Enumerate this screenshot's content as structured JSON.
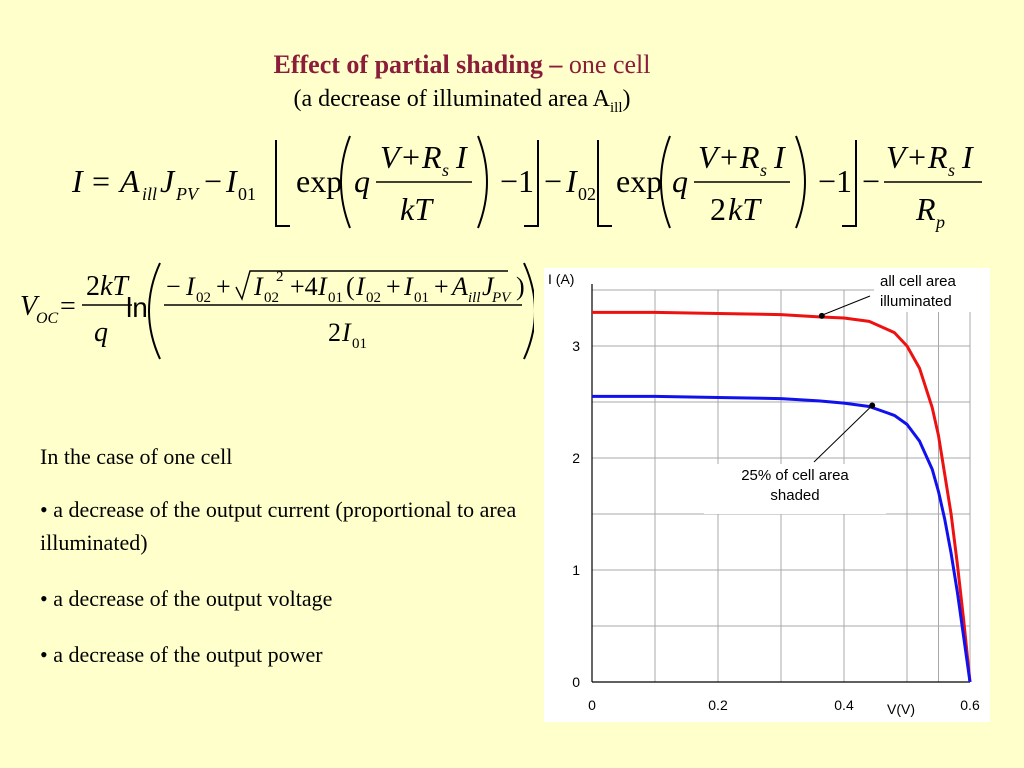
{
  "slide": {
    "title_bold": "Effect of partial shading –",
    "title_rest": " one cell",
    "subtitle_main": "(a decrease of illuminated area A",
    "subtitle_sub": "ill",
    "subtitle_end": ")"
  },
  "bullets": {
    "intro": "In the case of one cell",
    "items": [
      "• a decrease of the output current (proportional to area illuminated)",
      "• a  decrease of the output voltage",
      "• a decrease of the output power"
    ]
  },
  "chart_data": {
    "type": "line",
    "xlabel": "V(V)",
    "ylabel": "I (A)",
    "xlim": [
      0,
      0.6
    ],
    "ylim": [
      0,
      3.5
    ],
    "x_ticks": [
      "0",
      "0.2",
      "0.4",
      "0.6"
    ],
    "y_ticks": [
      "0",
      "1",
      "2",
      "3"
    ],
    "grid": true,
    "series": [
      {
        "color": "#ee1111",
        "x": [
          0,
          0.1,
          0.2,
          0.3,
          0.36,
          0.4,
          0.44,
          0.48,
          0.5,
          0.52,
          0.54,
          0.55,
          0.56,
          0.57,
          0.58,
          0.59,
          0.6
        ],
        "y": [
          3.3,
          3.3,
          3.29,
          3.28,
          3.26,
          3.25,
          3.22,
          3.12,
          3.0,
          2.8,
          2.45,
          2.2,
          1.85,
          1.5,
          1.05,
          0.55,
          0.0
        ]
      },
      {
        "color": "#1111ee",
        "x": [
          0,
          0.1,
          0.2,
          0.3,
          0.36,
          0.4,
          0.44,
          0.48,
          0.5,
          0.52,
          0.54,
          0.55,
          0.56,
          0.57,
          0.58,
          0.59,
          0.6
        ],
        "y": [
          2.55,
          2.55,
          2.54,
          2.53,
          2.51,
          2.49,
          2.46,
          2.38,
          2.3,
          2.15,
          1.9,
          1.7,
          1.45,
          1.15,
          0.8,
          0.4,
          0.0
        ]
      }
    ],
    "annotations": [
      {
        "lines": [
          "all cell area",
          "illuminated"
        ],
        "series": 0,
        "x": 0.36,
        "y": 3.26
      },
      {
        "lines": [
          "25% of cell area",
          "shaded"
        ],
        "series": 1,
        "x": 0.44,
        "y": 2.46
      }
    ]
  }
}
